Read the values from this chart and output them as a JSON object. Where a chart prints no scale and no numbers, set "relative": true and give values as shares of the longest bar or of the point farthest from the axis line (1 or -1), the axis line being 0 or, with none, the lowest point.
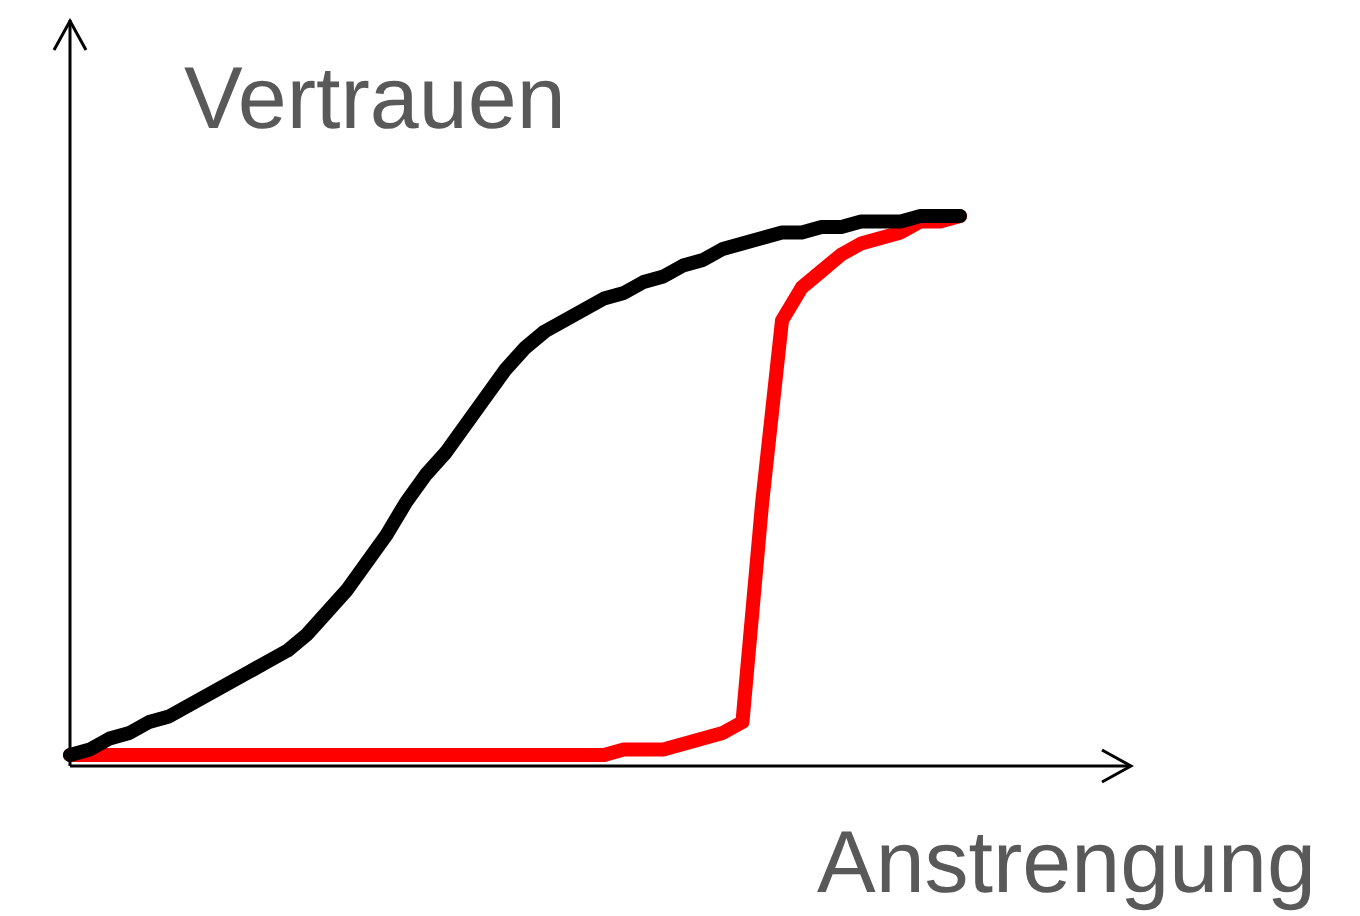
{
  "chart_data": {
    "type": "line",
    "relative": true,
    "xlabel": "Anstrengung",
    "ylabel": "Vertrauen",
    "marker": "none",
    "categories": [
      null,
      null,
      null,
      null,
      null,
      null,
      null,
      null,
      null,
      null,
      null,
      null,
      null,
      null,
      null,
      null,
      null,
      null,
      null,
      null,
      null,
      null,
      null,
      null,
      null,
      null,
      null,
      null,
      null,
      null,
      null,
      null,
      null,
      null,
      null,
      null,
      null,
      null,
      null,
      null,
      null,
      null,
      null,
      null,
      null,
      null
    ],
    "series": [
      {
        "color": "#000000",
        "values": [
          0.02,
          0.03,
          0.05,
          0.06,
          0.08,
          0.09,
          0.11,
          0.13,
          0.15,
          0.17,
          0.19,
          0.21,
          0.24,
          0.28,
          0.32,
          0.37,
          0.42,
          0.48,
          0.53,
          0.57,
          0.62,
          0.67,
          0.72,
          0.76,
          0.79,
          0.81,
          0.83,
          0.85,
          0.86,
          0.88,
          0.89,
          0.91,
          0.92,
          0.94,
          0.95,
          0.96,
          0.97,
          0.97,
          0.98,
          0.98,
          0.99,
          0.99,
          0.99,
          1,
          1,
          1
        ]
      },
      {
        "color": "#ff0000",
        "values": [
          0.02,
          0.02,
          0.02,
          0.02,
          0.02,
          0.02,
          0.02,
          0.02,
          0.02,
          0.02,
          0.02,
          0.02,
          0.02,
          0.02,
          0.02,
          0.02,
          0.02,
          0.02,
          0.02,
          0.02,
          0.02,
          0.02,
          0.02,
          0.02,
          0.02,
          0.02,
          0.02,
          0.02,
          0.03,
          0.03,
          0.03,
          0.04,
          0.05,
          0.06,
          0.08,
          0.48,
          0.81,
          0.87,
          0.9,
          0.93,
          0.95,
          0.96,
          0.97,
          0.99,
          0.99,
          1
        ]
      }
    ]
  }
}
